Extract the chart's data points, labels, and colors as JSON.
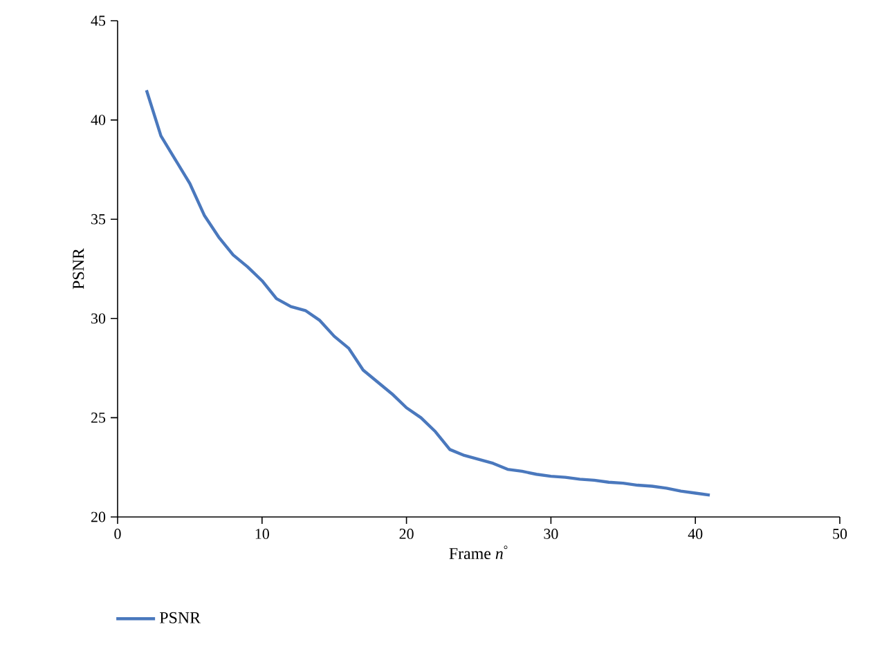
{
  "chart_data": {
    "type": "line",
    "xlabel": "Frame *n*$^{°}$",
    "ylabel": "PSNR",
    "x": [
      2,
      3,
      4,
      5,
      6,
      7,
      8,
      9,
      10,
      11,
      12,
      13,
      14,
      15,
      16,
      17,
      18,
      19,
      20,
      21,
      22,
      23,
      24,
      25,
      26,
      27,
      28,
      29,
      30,
      31,
      32,
      33,
      34,
      35,
      36,
      37,
      38,
      39,
      40,
      41
    ],
    "series": [
      {
        "name": "PSNR",
        "color": "#4a78bd",
        "values": [
          41.5,
          39.2,
          38.0,
          36.8,
          35.2,
          34.1,
          33.2,
          32.6,
          31.9,
          31.0,
          30.6,
          30.4,
          29.9,
          29.1,
          28.5,
          27.4,
          26.8,
          26.2,
          25.5,
          25.0,
          24.3,
          23.4,
          23.1,
          22.9,
          22.7,
          22.4,
          22.3,
          22.15,
          22.05,
          22.0,
          21.9,
          21.85,
          21.75,
          21.7,
          21.6,
          21.55,
          21.45,
          21.3,
          21.2,
          21.1
        ]
      }
    ],
    "xlim": [
      0,
      50
    ],
    "ylim": [
      20,
      45
    ],
    "xticks": [
      0,
      10,
      20,
      30,
      40,
      50
    ],
    "yticks": [
      20,
      25,
      30,
      35,
      40,
      45
    ],
    "legend": "bottom left",
    "grid": false,
    "marker": "none",
    "line_style": "solid"
  }
}
